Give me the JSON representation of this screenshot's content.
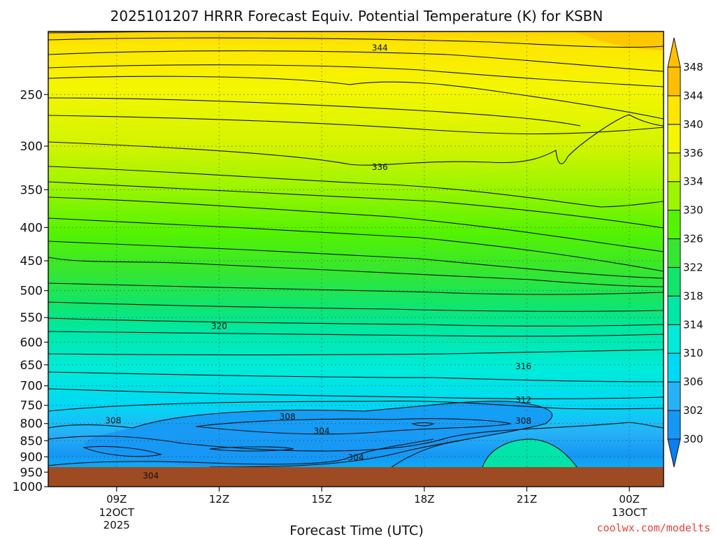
{
  "chart_data": {
    "type": "heatmap",
    "title": "2025101207 HRRR Forecast Equiv. Potential Temperature (K) for KSBN",
    "xlabel": "Forecast Time (UTC)",
    "ylabel": "",
    "y_axis": {
      "scale": "log",
      "reversed": true,
      "range": [
        1000,
        200
      ],
      "ticks": [
        250,
        300,
        350,
        400,
        450,
        500,
        550,
        600,
        650,
        700,
        750,
        800,
        850,
        900,
        950,
        1000
      ]
    },
    "x_axis": {
      "ticks": [
        {
          "hour": 9,
          "label": "09Z",
          "sub": [
            "12OCT",
            "2025"
          ]
        },
        {
          "hour": 12,
          "label": "12Z",
          "sub": []
        },
        {
          "hour": 15,
          "label": "15Z",
          "sub": []
        },
        {
          "hour": 18,
          "label": "18Z",
          "sub": []
        },
        {
          "hour": 21,
          "label": "21Z",
          "sub": []
        },
        {
          "hour": 24,
          "label": "00Z",
          "sub": [
            "13OCT"
          ]
        }
      ],
      "range": [
        7,
        25
      ]
    },
    "colorbar": {
      "labels": [
        300,
        302,
        306,
        310,
        314,
        318,
        322,
        326,
        330,
        334,
        336,
        340,
        344,
        348
      ],
      "colors": [
        "#0a7ff0",
        "#1697f5",
        "#27b2f7",
        "#00d9f4",
        "#00ecd9",
        "#00e8a5",
        "#10e56c",
        "#35e632",
        "#55f300",
        "#9ef500",
        "#d3f400",
        "#f4f700",
        "#fde700",
        "#ffbf00"
      ]
    },
    "ground_color": "#9e4b24",
    "contour_labels": [
      {
        "time": 16.7,
        "pressure": 212,
        "value": "344"
      },
      {
        "time": 16.7,
        "pressure": 323,
        "value": "336"
      },
      {
        "time": 12.0,
        "pressure": 567,
        "value": "320"
      },
      {
        "time": 20.9,
        "pressure": 654,
        "value": "316"
      },
      {
        "time": 20.9,
        "pressure": 736,
        "value": "312"
      },
      {
        "time": 20.9,
        "pressure": 793,
        "value": "308"
      },
      {
        "time": 8.9,
        "pressure": 792,
        "value": "308"
      },
      {
        "time": 14.0,
        "pressure": 781,
        "value": "308"
      },
      {
        "time": 15.0,
        "pressure": 822,
        "value": "304"
      },
      {
        "time": 16.0,
        "pressure": 903,
        "value": "304"
      },
      {
        "time": 10.0,
        "pressure": 962,
        "value": "304"
      }
    ]
  },
  "credit": "coolwx.com/modelts"
}
